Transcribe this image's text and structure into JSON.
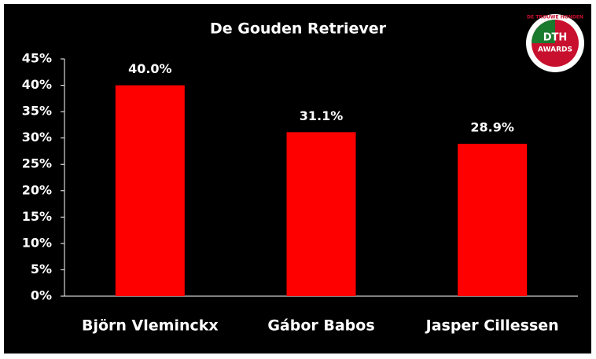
{
  "chart_data": {
    "type": "bar",
    "title": "De Gouden Retriever",
    "categories": [
      "Björn Vleminckx",
      "Gábor Babos",
      "Jasper Cillessen"
    ],
    "values": [
      40.0,
      31.1,
      28.9
    ],
    "value_labels": [
      "40.0%",
      "31.1%",
      "28.9%"
    ],
    "color": "#ff0000",
    "ylim": [
      0,
      45
    ],
    "yticks": [
      {
        "value": 0,
        "label": "0%"
      },
      {
        "value": 5,
        "label": "5%"
      },
      {
        "value": 10,
        "label": "10%"
      },
      {
        "value": 15,
        "label": "15%"
      },
      {
        "value": 20,
        "label": "20%"
      },
      {
        "value": 25,
        "label": "25%"
      },
      {
        "value": 30,
        "label": "30%"
      },
      {
        "value": 35,
        "label": "35%"
      },
      {
        "value": 40,
        "label": "40%"
      },
      {
        "value": 45,
        "label": "45%"
      }
    ],
    "grid": false
  },
  "logo": {
    "top": "DE TROUWE HONDEN",
    "main": "DTH",
    "sub": "AWARDS"
  }
}
